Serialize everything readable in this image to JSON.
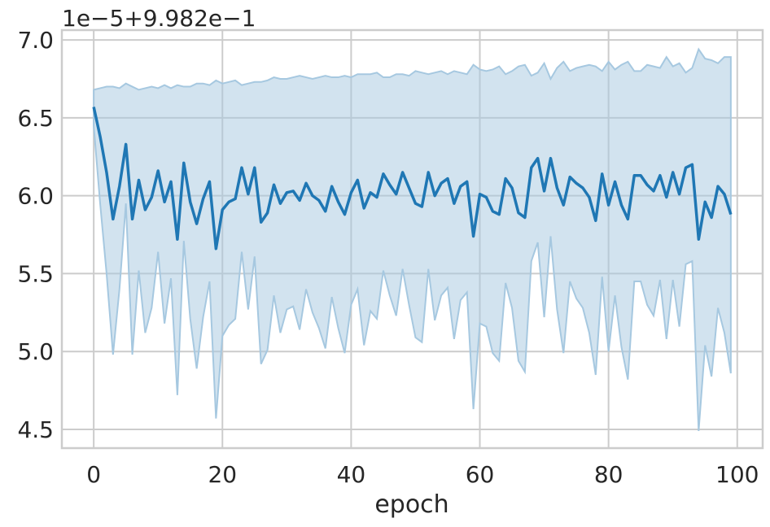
{
  "chart_data": {
    "type": "line",
    "offset_text": "1e−5+9.982e−1",
    "xlabel": "epoch",
    "x": [
      0,
      1,
      2,
      3,
      4,
      5,
      6,
      7,
      8,
      9,
      10,
      11,
      12,
      13,
      14,
      15,
      16,
      17,
      18,
      19,
      20,
      21,
      22,
      23,
      24,
      25,
      26,
      27,
      28,
      29,
      30,
      31,
      32,
      33,
      34,
      35,
      36,
      37,
      38,
      39,
      40,
      41,
      42,
      43,
      44,
      45,
      46,
      47,
      48,
      49,
      50,
      51,
      52,
      53,
      54,
      55,
      56,
      57,
      58,
      59,
      60,
      61,
      62,
      63,
      64,
      65,
      66,
      67,
      68,
      69,
      70,
      71,
      72,
      73,
      74,
      75,
      76,
      77,
      78,
      79,
      80,
      81,
      82,
      83,
      84,
      85,
      86,
      87,
      88,
      89,
      90,
      91,
      92,
      93,
      94,
      95,
      96,
      97,
      98,
      99
    ],
    "values": [
      6.57,
      6.38,
      6.15,
      5.85,
      6.06,
      6.33,
      5.85,
      6.1,
      5.91,
      5.99,
      6.16,
      5.96,
      6.09,
      5.72,
      6.21,
      5.96,
      5.82,
      5.98,
      6.09,
      5.66,
      5.91,
      5.96,
      5.98,
      6.18,
      6.01,
      6.18,
      5.83,
      5.89,
      6.07,
      5.95,
      6.02,
      6.03,
      5.97,
      6.08,
      6.0,
      5.97,
      5.9,
      6.06,
      5.96,
      5.88,
      6.02,
      6.1,
      5.92,
      6.02,
      5.99,
      6.14,
      6.07,
      6.01,
      6.15,
      6.05,
      5.95,
      5.93,
      6.15,
      6.0,
      6.08,
      6.11,
      5.95,
      6.06,
      6.09,
      5.74,
      6.01,
      5.99,
      5.9,
      5.88,
      6.11,
      6.05,
      5.89,
      5.86,
      6.18,
      6.24,
      6.03,
      6.24,
      6.05,
      5.94,
      6.12,
      6.08,
      6.05,
      5.99,
      5.84,
      6.14,
      5.94,
      6.09,
      5.94,
      5.85,
      6.13,
      6.13,
      6.07,
      6.03,
      6.13,
      5.99,
      6.15,
      6.01,
      6.18,
      6.2,
      5.72,
      5.96,
      5.86,
      6.06,
      6.01,
      5.88
    ],
    "lower": [
      6.45,
      5.95,
      5.5,
      4.98,
      5.4,
      5.95,
      4.98,
      5.52,
      5.12,
      5.28,
      5.64,
      5.18,
      5.47,
      4.72,
      5.71,
      5.21,
      4.89,
      5.22,
      5.45,
      4.57,
      5.1,
      5.17,
      5.21,
      5.64,
      5.27,
      5.61,
      4.92,
      5.01,
      5.36,
      5.12,
      5.27,
      5.29,
      5.14,
      5.4,
      5.25,
      5.15,
      5.02,
      5.35,
      5.15,
      4.99,
      5.3,
      5.4,
      5.04,
      5.26,
      5.21,
      5.52,
      5.36,
      5.23,
      5.53,
      5.3,
      5.09,
      5.06,
      5.53,
      5.2,
      5.36,
      5.41,
      5.08,
      5.33,
      5.38,
      4.63,
      5.18,
      5.16,
      4.99,
      4.94,
      5.44,
      5.28,
      4.94,
      4.87,
      5.58,
      5.7,
      5.22,
      5.74,
      5.27,
      4.99,
      5.45,
      5.34,
      5.28,
      5.12,
      4.85,
      5.48,
      5.0,
      5.36,
      5.03,
      4.82,
      5.45,
      5.45,
      5.3,
      5.23,
      5.46,
      5.08,
      5.46,
      5.16,
      5.56,
      5.58,
      4.49,
      5.04,
      4.84,
      5.28,
      5.12,
      4.86
    ],
    "upper": [
      6.68,
      6.69,
      6.7,
      6.7,
      6.69,
      6.72,
      6.7,
      6.68,
      6.69,
      6.7,
      6.69,
      6.71,
      6.69,
      6.71,
      6.7,
      6.7,
      6.72,
      6.72,
      6.71,
      6.74,
      6.72,
      6.73,
      6.74,
      6.71,
      6.72,
      6.73,
      6.73,
      6.74,
      6.76,
      6.75,
      6.75,
      6.76,
      6.77,
      6.76,
      6.75,
      6.76,
      6.77,
      6.76,
      6.76,
      6.77,
      6.76,
      6.78,
      6.78,
      6.78,
      6.79,
      6.76,
      6.76,
      6.78,
      6.78,
      6.77,
      6.8,
      6.79,
      6.78,
      6.79,
      6.8,
      6.78,
      6.8,
      6.79,
      6.78,
      6.84,
      6.81,
      6.8,
      6.81,
      6.83,
      6.78,
      6.8,
      6.83,
      6.84,
      6.77,
      6.79,
      6.85,
      6.75,
      6.82,
      6.86,
      6.8,
      6.82,
      6.83,
      6.84,
      6.83,
      6.8,
      6.86,
      6.81,
      6.84,
      6.86,
      6.8,
      6.8,
      6.84,
      6.83,
      6.82,
      6.89,
      6.83,
      6.85,
      6.79,
      6.82,
      6.94,
      6.88,
      6.87,
      6.85,
      6.89,
      6.89
    ],
    "color": "#1f77b4",
    "band_color": "#a6c8e0",
    "xlim": [
      -4.95,
      103.95
    ],
    "ylim": [
      4.38,
      7.063
    ],
    "xticks": [
      0,
      20,
      40,
      60,
      80,
      100
    ],
    "yticks": [
      4.5,
      {
        "value": 5.0,
        "label": "5.0"
      },
      5.5,
      {
        "value": 6.0,
        "label": "6.0"
      },
      6.5,
      {
        "value": 7.0,
        "label": "7.0"
      }
    ],
    "grid": true
  }
}
